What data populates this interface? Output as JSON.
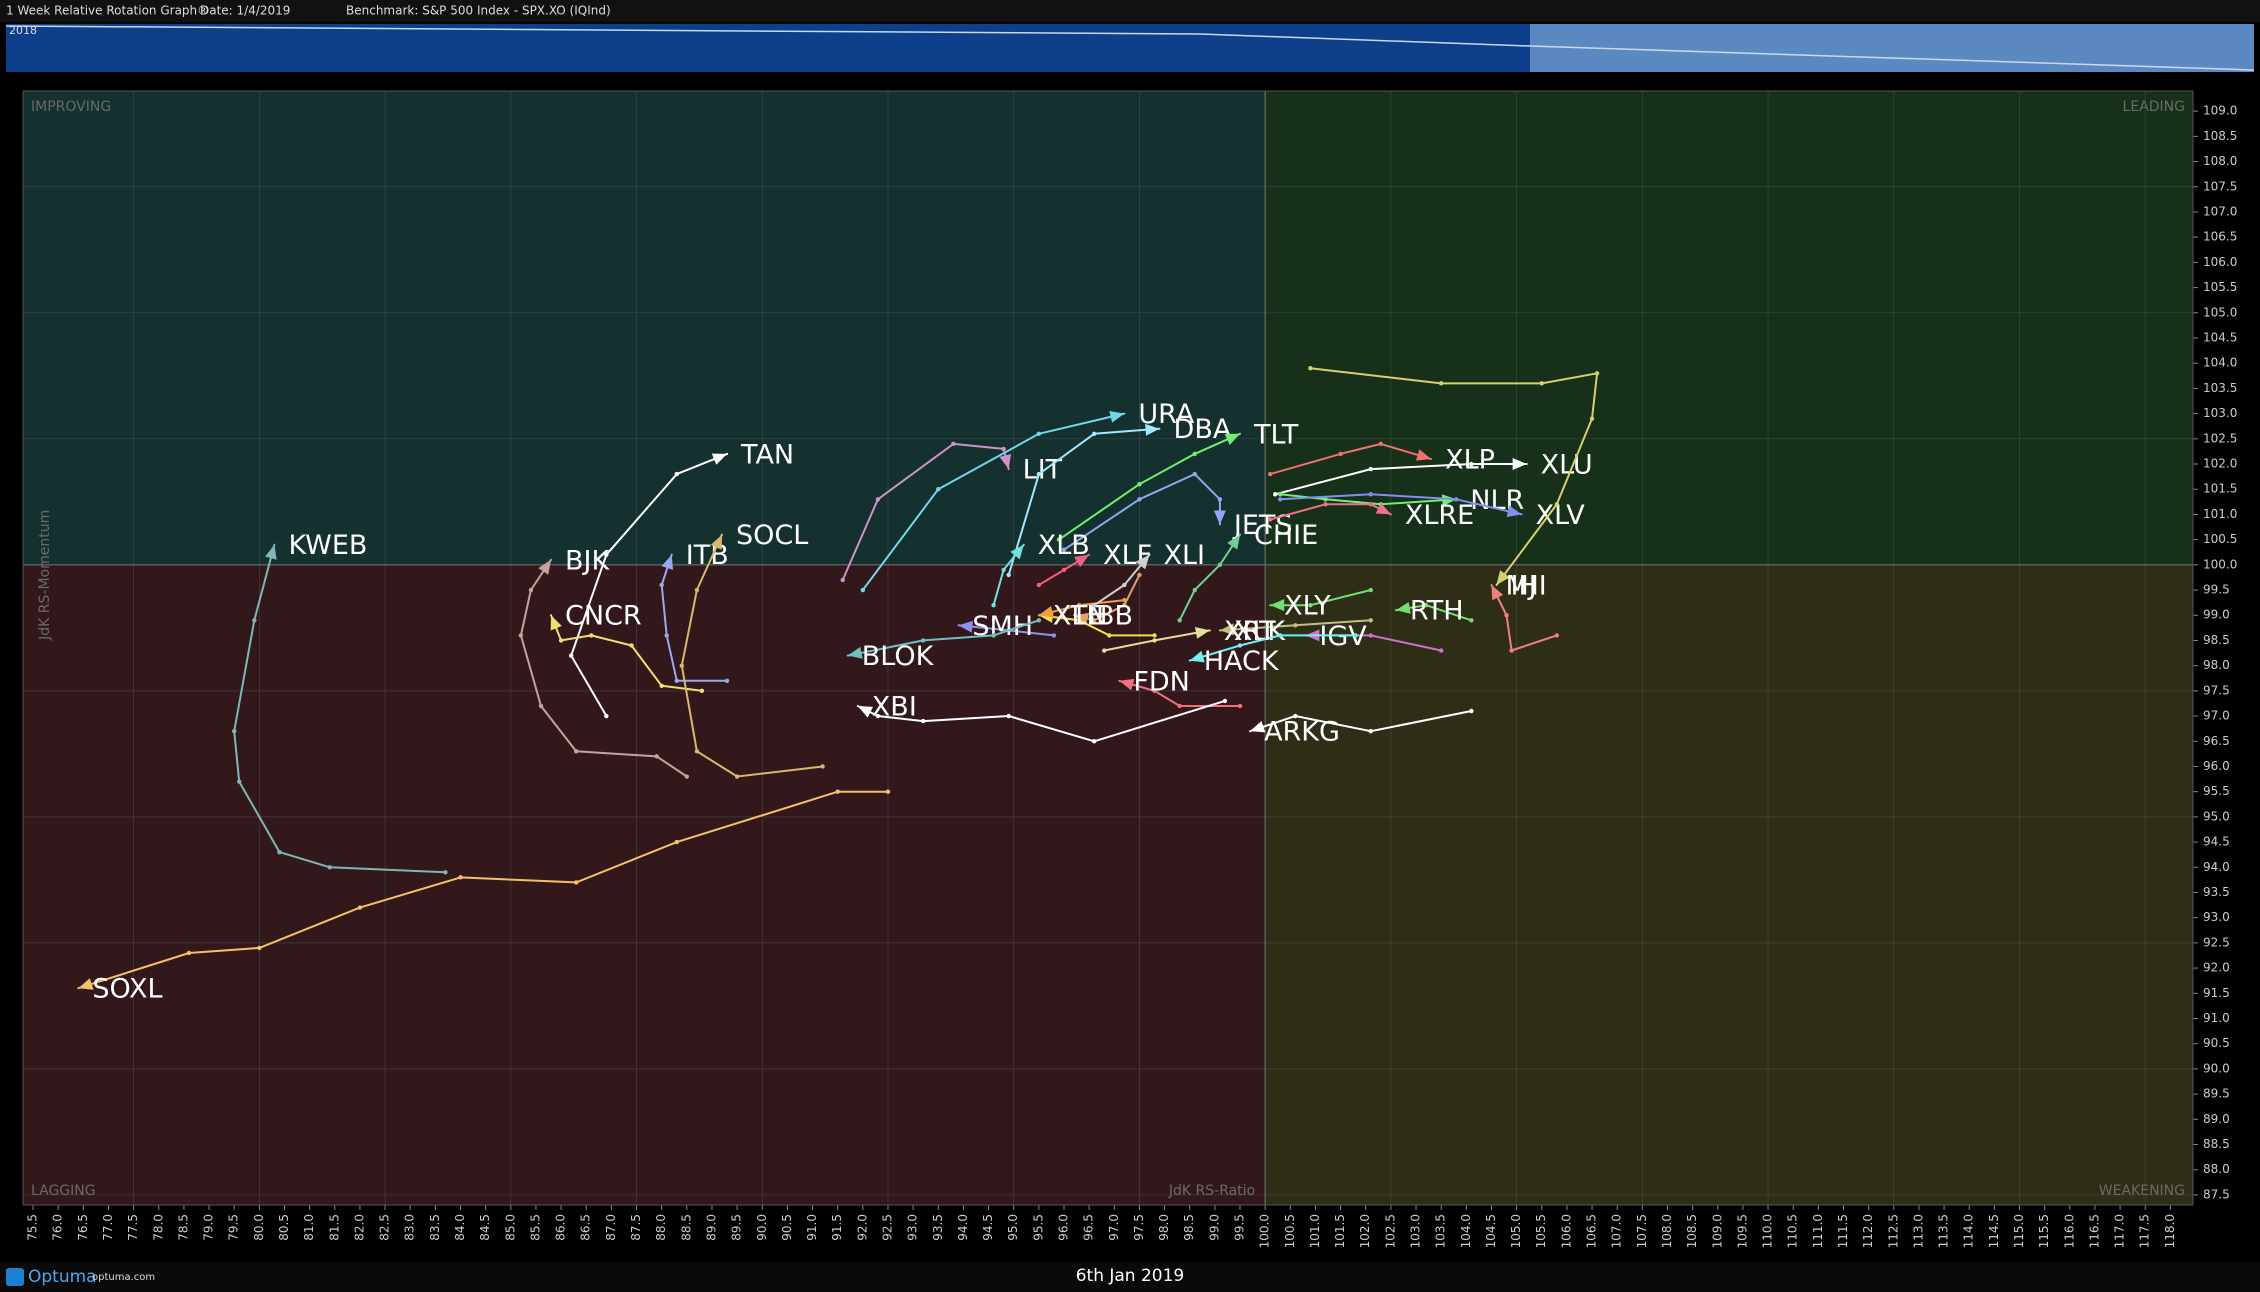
{
  "header": {
    "title": "1 Week Relative Rotation Graph®",
    "date": "Date: 1/4/2019",
    "benchmark": "Benchmark:  S&P 500 Index - SPX.XO (IQInd)",
    "strip_year": "2018"
  },
  "footer": {
    "brand": "Optuma",
    "site": "optuma.com",
    "date": "6th Jan 2019"
  },
  "chart_data": {
    "type": "rrg",
    "xlabel": "JdK RS-Ratio",
    "ylabel": "JdK RS-Momentum",
    "quadrants": {
      "top_left": "IMPROVING",
      "top_right": "LEADING",
      "bottom_left": "LAGGING",
      "bottom_right": "WEAKENING"
    },
    "center": [
      100,
      100
    ],
    "xlim": [
      75.3,
      118.45
    ],
    "ylim": [
      87.3,
      109.4
    ],
    "grid": true,
    "xticks": [
      75.5,
      {
        "value": 76,
        "label": "76.0"
      },
      76.5,
      {
        "value": 77,
        "label": "77.0"
      },
      77.5,
      {
        "value": 78,
        "label": "78.0"
      },
      78.5,
      {
        "value": 79,
        "label": "79.0"
      },
      79.5,
      {
        "value": 80,
        "label": "80.0"
      },
      80.5,
      {
        "value": 81,
        "label": "81.0"
      },
      81.5,
      {
        "value": 82,
        "label": "82.0"
      },
      82.5,
      {
        "value": 83,
        "label": "83.0"
      },
      83.5,
      {
        "value": 84,
        "label": "84.0"
      },
      84.5,
      {
        "value": 85,
        "label": "85.0"
      },
      85.5,
      {
        "value": 86,
        "label": "86.0"
      },
      86.5,
      {
        "value": 87,
        "label": "87.0"
      },
      87.5,
      {
        "value": 88,
        "label": "88.0"
      },
      88.5,
      {
        "value": 89,
        "label": "89.0"
      },
      89.5,
      {
        "value": 90,
        "label": "90.0"
      },
      90.5,
      {
        "value": 91,
        "label": "91.0"
      },
      91.5,
      {
        "value": 92,
        "label": "92.0"
      },
      92.5,
      {
        "value": 93,
        "label": "93.0"
      },
      93.5,
      {
        "value": 94,
        "label": "94.0"
      },
      94.5,
      {
        "value": 95,
        "label": "95.0"
      },
      95.5,
      {
        "value": 96,
        "label": "96.0"
      },
      96.5,
      {
        "value": 97,
        "label": "97.0"
      },
      97.5,
      {
        "value": 98,
        "label": "98.0"
      },
      98.5,
      {
        "value": 99,
        "label": "99.0"
      },
      99.5,
      {
        "value": 100,
        "label": "100.0"
      },
      100.5,
      {
        "value": 101,
        "label": "101.0"
      },
      101.5,
      {
        "value": 102,
        "label": "102.0"
      },
      102.5,
      {
        "value": 103,
        "label": "103.0"
      },
      103.5,
      {
        "value": 104,
        "label": "104.0"
      },
      104.5,
      {
        "value": 105,
        "label": "105.0"
      },
      105.5,
      {
        "value": 106,
        "label": "106.0"
      },
      106.5,
      {
        "value": 107,
        "label": "107.0"
      },
      107.5,
      {
        "value": 108,
        "label": "108.0"
      },
      108.5,
      {
        "value": 109,
        "label": "109.0"
      },
      109.5,
      {
        "value": 110,
        "label": "110.0"
      },
      110.5,
      {
        "value": 111,
        "label": "111.0"
      },
      111.5,
      {
        "value": 112,
        "label": "112.0"
      },
      112.5,
      {
        "value": 113,
        "label": "113.0"
      },
      113.5,
      {
        "value": 114,
        "label": "114.0"
      },
      114.5,
      {
        "value": 115,
        "label": "115.0"
      },
      115.5,
      {
        "value": 116,
        "label": "116.0"
      },
      116.5,
      {
        "value": 117,
        "label": "117.0"
      },
      117.5,
      {
        "value": 118,
        "label": "118.0"
      }
    ],
    "yticks": [
      87.5,
      {
        "value": 88,
        "label": "88.0"
      },
      88.5,
      {
        "value": 89,
        "label": "89.0"
      },
      89.5,
      {
        "value": 90,
        "label": "90.0"
      },
      90.5,
      {
        "value": 91,
        "label": "91.0"
      },
      91.5,
      {
        "value": 92,
        "label": "92.0"
      },
      92.5,
      {
        "value": 93,
        "label": "93.0"
      },
      93.5,
      {
        "value": 94,
        "label": "94.0"
      },
      94.5,
      {
        "value": 95,
        "label": "95.0"
      },
      95.5,
      {
        "value": 96,
        "label": "96.0"
      },
      96.5,
      {
        "value": 97,
        "label": "97.0"
      },
      97.5,
      {
        "value": 98,
        "label": "98.0"
      },
      98.5,
      {
        "value": 99,
        "label": "99.0"
      },
      99.5,
      {
        "value": 100,
        "label": "100.0"
      },
      100.5,
      {
        "value": 101,
        "label": "101.0"
      },
      101.5,
      {
        "value": 102,
        "label": "102.0"
      },
      102.5,
      {
        "value": 103,
        "label": "103.0"
      },
      103.5,
      {
        "value": 104,
        "label": "104.0"
      },
      104.5,
      {
        "value": 105,
        "label": "105.0"
      },
      105.5,
      {
        "value": 106,
        "label": "106.0"
      },
      106.5,
      {
        "value": 107,
        "label": "107.0"
      },
      107.5,
      {
        "value": 108,
        "label": "108.0"
      },
      108.5,
      {
        "value": 109,
        "label": "109.0"
      }
    ],
    "series": [
      {
        "name": "SOXL",
        "color": "#f5c06a",
        "x": [
          92.5,
          91.5,
          88.3,
          86.3,
          84.0,
          82.0,
          80.0,
          78.6,
          76.4
        ],
        "y": [
          95.5,
          95.5,
          94.5,
          93.7,
          93.8,
          93.2,
          92.4,
          92.3,
          91.6
        ]
      },
      {
        "name": "KWEB",
        "color": "#7fb7b7",
        "x": [
          83.7,
          81.4,
          80.4,
          79.6,
          79.5,
          79.9,
          80.3
        ],
        "y": [
          93.9,
          94.0,
          94.3,
          95.7,
          96.7,
          98.9,
          100.4
        ]
      },
      {
        "name": "TAN",
        "color": "#ffffff",
        "x": [
          86.9,
          86.2,
          86.9,
          88.3,
          89.3
        ],
        "y": [
          97.0,
          98.2,
          100.2,
          101.8,
          102.2
        ]
      },
      {
        "name": "BJK",
        "color": "#c8a0a0",
        "x": [
          88.5,
          87.9,
          86.3,
          85.6,
          85.2,
          85.4,
          85.8
        ],
        "y": [
          95.8,
          96.2,
          96.3,
          97.2,
          98.6,
          99.5,
          100.1
        ]
      },
      {
        "name": "CNCR",
        "color": "#f0e070",
        "x": [
          88.8,
          88.0,
          87.4,
          86.6,
          86.0,
          85.8
        ],
        "y": [
          97.5,
          97.6,
          98.4,
          98.6,
          98.5,
          99.0
        ]
      },
      {
        "name": "ITB",
        "color": "#9aa8f0",
        "x": [
          89.3,
          88.3,
          88.1,
          88.0,
          88.2
        ],
        "y": [
          97.7,
          97.7,
          98.6,
          99.6,
          100.2
        ]
      },
      {
        "name": "SOCL",
        "color": "#d8b870",
        "x": [
          91.2,
          89.5,
          88.7,
          88.4,
          88.7,
          89.2
        ],
        "y": [
          96.0,
          95.8,
          96.3,
          98.0,
          99.5,
          100.6
        ]
      },
      {
        "name": "LIT",
        "color": "#d090c8",
        "x": [
          91.6,
          92.3,
          93.8,
          94.8,
          94.9
        ],
        "y": [
          99.7,
          101.3,
          102.4,
          102.3,
          101.9
        ]
      },
      {
        "name": "URA",
        "color": "#70d8e8",
        "x": [
          92.0,
          93.5,
          95.5,
          97.2
        ],
        "y": [
          99.5,
          101.5,
          102.6,
          103.0
        ]
      },
      {
        "name": "DBA",
        "color": "#a0e8ff",
        "x": [
          94.9,
          95.5,
          96.6,
          97.9
        ],
        "y": [
          99.8,
          101.8,
          102.6,
          102.7
        ]
      },
      {
        "name": "TLT",
        "color": "#70f070",
        "x": [
          95.9,
          97.5,
          98.6,
          99.5
        ],
        "y": [
          100.5,
          101.6,
          102.2,
          102.6
        ]
      },
      {
        "name": "JETS",
        "color": "#90a8f0",
        "x": [
          96.0,
          97.5,
          98.6,
          99.1,
          99.1
        ],
        "y": [
          100.3,
          101.3,
          101.8,
          101.3,
          100.8
        ]
      },
      {
        "name": "XLP",
        "color": "#f07070",
        "x": [
          100.1,
          101.5,
          102.3,
          103.3
        ],
        "y": [
          101.8,
          102.2,
          102.4,
          102.1
        ]
      },
      {
        "name": "XLU",
        "color": "#ffffff",
        "x": [
          100.2,
          102.1,
          104.1,
          105.2
        ],
        "y": [
          101.4,
          101.9,
          102.0,
          102.0
        ]
      },
      {
        "name": "NLR",
        "color": "#70f070",
        "x": [
          100.3,
          101.2,
          102.3,
          103.8
        ],
        "y": [
          101.4,
          101.3,
          101.2,
          101.3
        ]
      },
      {
        "name": "XLRE",
        "color": "#f07090",
        "x": [
          100.1,
          101.2,
          102.1,
          102.5
        ],
        "y": [
          100.9,
          101.2,
          101.2,
          101.0
        ]
      },
      {
        "name": "XLV",
        "color": "#8090f0",
        "x": [
          100.3,
          102.1,
          103.8,
          105.1
        ],
        "y": [
          101.3,
          101.4,
          101.3,
          101.0
        ]
      },
      {
        "name": "IHI",
        "color": "#d8d070",
        "x": [
          100.9,
          103.5,
          105.5,
          106.6,
          106.5,
          105.8,
          104.6
        ],
        "y": [
          103.9,
          103.6,
          103.6,
          103.8,
          102.9,
          101.2,
          99.6
        ]
      },
      {
        "name": "MJ",
        "color": "#f08080",
        "x": [
          105.8,
          104.9,
          104.8,
          104.5
        ],
        "y": [
          98.6,
          98.3,
          99.0,
          99.6
        ]
      },
      {
        "name": "RTH",
        "color": "#70e070",
        "x": [
          104.1,
          103.2,
          102.6
        ],
        "y": [
          98.9,
          99.2,
          99.1
        ]
      },
      {
        "name": "XLY",
        "color": "#70e070",
        "x": [
          102.1,
          100.9,
          100.1
        ],
        "y": [
          99.5,
          99.2,
          99.2
        ]
      },
      {
        "name": "IGV",
        "color": "#d070d0",
        "x": [
          103.5,
          102.1,
          100.8
        ],
        "y": [
          98.3,
          98.6,
          98.6
        ]
      },
      {
        "name": "XLK",
        "color": "#c0c080",
        "x": [
          102.1,
          100.6,
          99.1
        ],
        "y": [
          98.9,
          98.8,
          98.7
        ]
      },
      {
        "name": "HACK",
        "color": "#70f0f0",
        "x": [
          101.8,
          100.3,
          99.5,
          98.5
        ],
        "y": [
          98.6,
          98.6,
          98.4,
          98.1
        ]
      },
      {
        "name": "ARKG",
        "color": "#ffffff",
        "x": [
          104.1,
          102.1,
          100.6,
          99.7
        ],
        "y": [
          97.1,
          96.7,
          97.0,
          96.7
        ]
      },
      {
        "name": "FDN",
        "color": "#f07080",
        "x": [
          99.5,
          98.3,
          97.8,
          97.1
        ],
        "y": [
          97.2,
          97.2,
          97.5,
          97.7
        ]
      },
      {
        "name": "XBI",
        "color": "#ffffff",
        "x": [
          99.2,
          96.6,
          94.9,
          93.2,
          92.3,
          91.9
        ],
        "y": [
          97.3,
          96.5,
          97.0,
          96.9,
          97.0,
          97.2
        ]
      },
      {
        "name": "XRT",
        "color": "#e0e0a0",
        "x": [
          96.8,
          97.8,
          98.9
        ],
        "y": [
          98.3,
          98.5,
          98.7
        ]
      },
      {
        "name": "IBB",
        "color": "#e0a070",
        "x": [
          97.5,
          97.2,
          96.6,
          96.2
        ],
        "y": [
          99.8,
          99.2,
          98.9,
          99.0
        ]
      },
      {
        "name": "XLE",
        "color": "#f0e050",
        "x": [
          97.8,
          96.9,
          96.3,
          95.5
        ],
        "y": [
          98.6,
          98.6,
          98.9,
          99.0
        ]
      },
      {
        "name": "XTN",
        "color": "#f0a040",
        "x": [
          97.2,
          96.3,
          95.5
        ],
        "y": [
          99.3,
          99.2,
          99.0
        ]
      },
      {
        "name": "SMH",
        "color": "#9090f0",
        "x": [
          95.8,
          94.9,
          93.9
        ],
        "y": [
          98.6,
          98.7,
          98.8
        ]
      },
      {
        "name": "BLOK",
        "color": "#70c0c0",
        "x": [
          95.5,
          94.6,
          93.2,
          91.7
        ],
        "y": [
          98.9,
          98.6,
          98.5,
          98.2
        ]
      },
      {
        "name": "XLB",
        "color": "#70e0e0",
        "x": [
          94.6,
          94.8,
          95.2
        ],
        "y": [
          99.2,
          99.9,
          100.4
        ]
      },
      {
        "name": "XLF",
        "color": "#f06080",
        "x": [
          95.5,
          96.0,
          96.5
        ],
        "y": [
          99.6,
          99.9,
          100.2
        ]
      },
      {
        "name": "XLI",
        "color": "#d0d0d0",
        "x": [
          96.6,
          97.2,
          97.7
        ],
        "y": [
          99.2,
          99.6,
          100.2
        ]
      },
      {
        "name": "CHIE",
        "color": "#70d090",
        "x": [
          98.3,
          98.6,
          99.1,
          99.5
        ],
        "y": [
          98.9,
          99.5,
          100.0,
          100.6
        ]
      }
    ]
  }
}
